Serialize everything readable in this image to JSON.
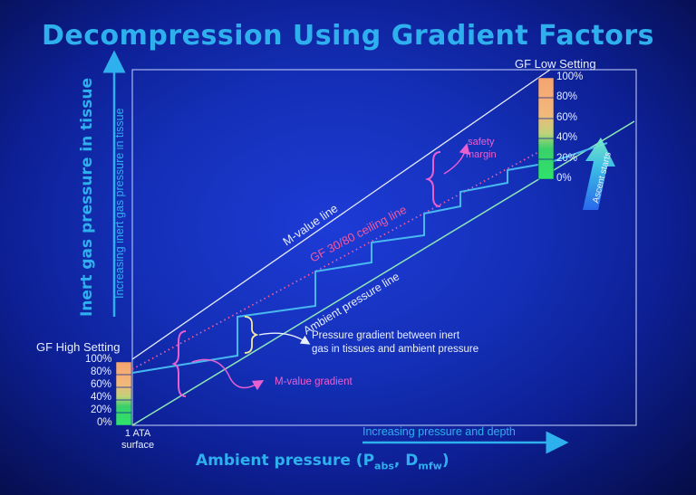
{
  "title": "Decompression Using Gradient Factors",
  "y_axis": {
    "label": "Inert gas pressure in tissue",
    "arrow_label": "Increasing inert gas pressure in tissue"
  },
  "x_axis": {
    "label_main": "Ambient pressure (P",
    "sub1": "abs",
    "label_mid": ", D",
    "sub2": "mfw",
    "label_end": ")",
    "arrow_label": "Increasing pressure and depth"
  },
  "origin_label": {
    "line1": "1 ATA",
    "line2": "surface"
  },
  "gf_high": {
    "title": "GF High Setting",
    "ticks": [
      "100%",
      "80%",
      "60%",
      "40%",
      "20%",
      "0%"
    ]
  },
  "gf_low": {
    "title": "GF Low Setting",
    "ticks": [
      "100%",
      "80%",
      "60%",
      "40%",
      "20%",
      "0%"
    ]
  },
  "lines": {
    "m_value": "M-value line",
    "ceiling": "GF 30/80 ceiling line",
    "ambient": "Ambient pressure line"
  },
  "annotations": {
    "safety_margin_1": "safety",
    "safety_margin_2": "margin",
    "pressure_gradient_1": "Pressure gradient between inert",
    "pressure_gradient_2": "gas in tissues and ambient pressure",
    "m_value_gradient": "M-value gradient",
    "ascent": "Ascent starts"
  },
  "colors": {
    "title": "#2fb0ee",
    "frame": "#c9d6ff",
    "m_value_line": "#e6ecff",
    "ambient_line": "#8ee8b6",
    "ceiling_line": "#f05aa0",
    "tissue_line": "#48b8f0",
    "bracket": "#e85fd0"
  }
}
